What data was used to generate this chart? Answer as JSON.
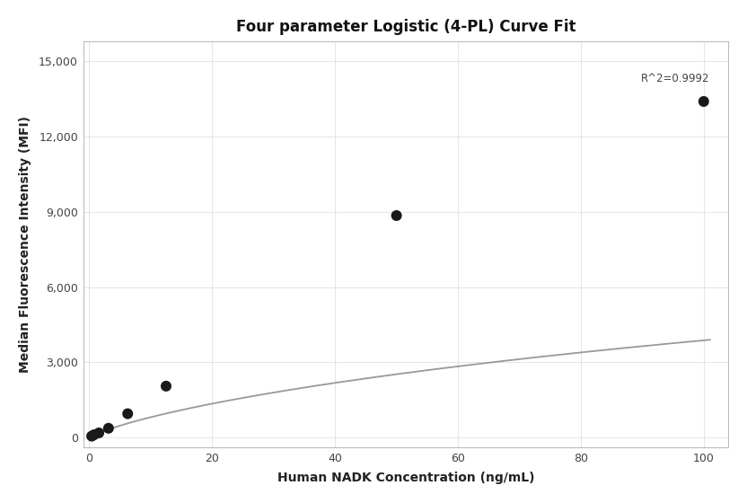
{
  "title": "Four parameter Logistic (4-PL) Curve Fit",
  "xlabel": "Human NADK Concentration (ng/mL)",
  "ylabel": "Median Fluorescence Intensity (MFI)",
  "scatter_x": [
    0.39,
    0.78,
    1.56,
    3.125,
    6.25,
    12.5,
    50,
    100
  ],
  "scatter_y": [
    55,
    110,
    185,
    370,
    950,
    2050,
    8850,
    13400
  ],
  "xlim": [
    -1,
    104
  ],
  "ylim": [
    -400,
    15800
  ],
  "xticks": [
    0,
    20,
    40,
    60,
    80,
    100
  ],
  "yticks": [
    0,
    3000,
    6000,
    9000,
    12000,
    15000
  ],
  "r_squared": "R^2=0.9992",
  "curve_color": "#999999",
  "scatter_color": "#1a1a1a",
  "grid_color": "#dce6f0",
  "bg_color": "#ffffff",
  "spine_color": "#bbbbbb",
  "title_fontsize": 12,
  "label_fontsize": 10,
  "tick_fontsize": 9,
  "4pl_A": -50,
  "4pl_B": 0.75,
  "4pl_C": 500,
  "4pl_D": 17000
}
